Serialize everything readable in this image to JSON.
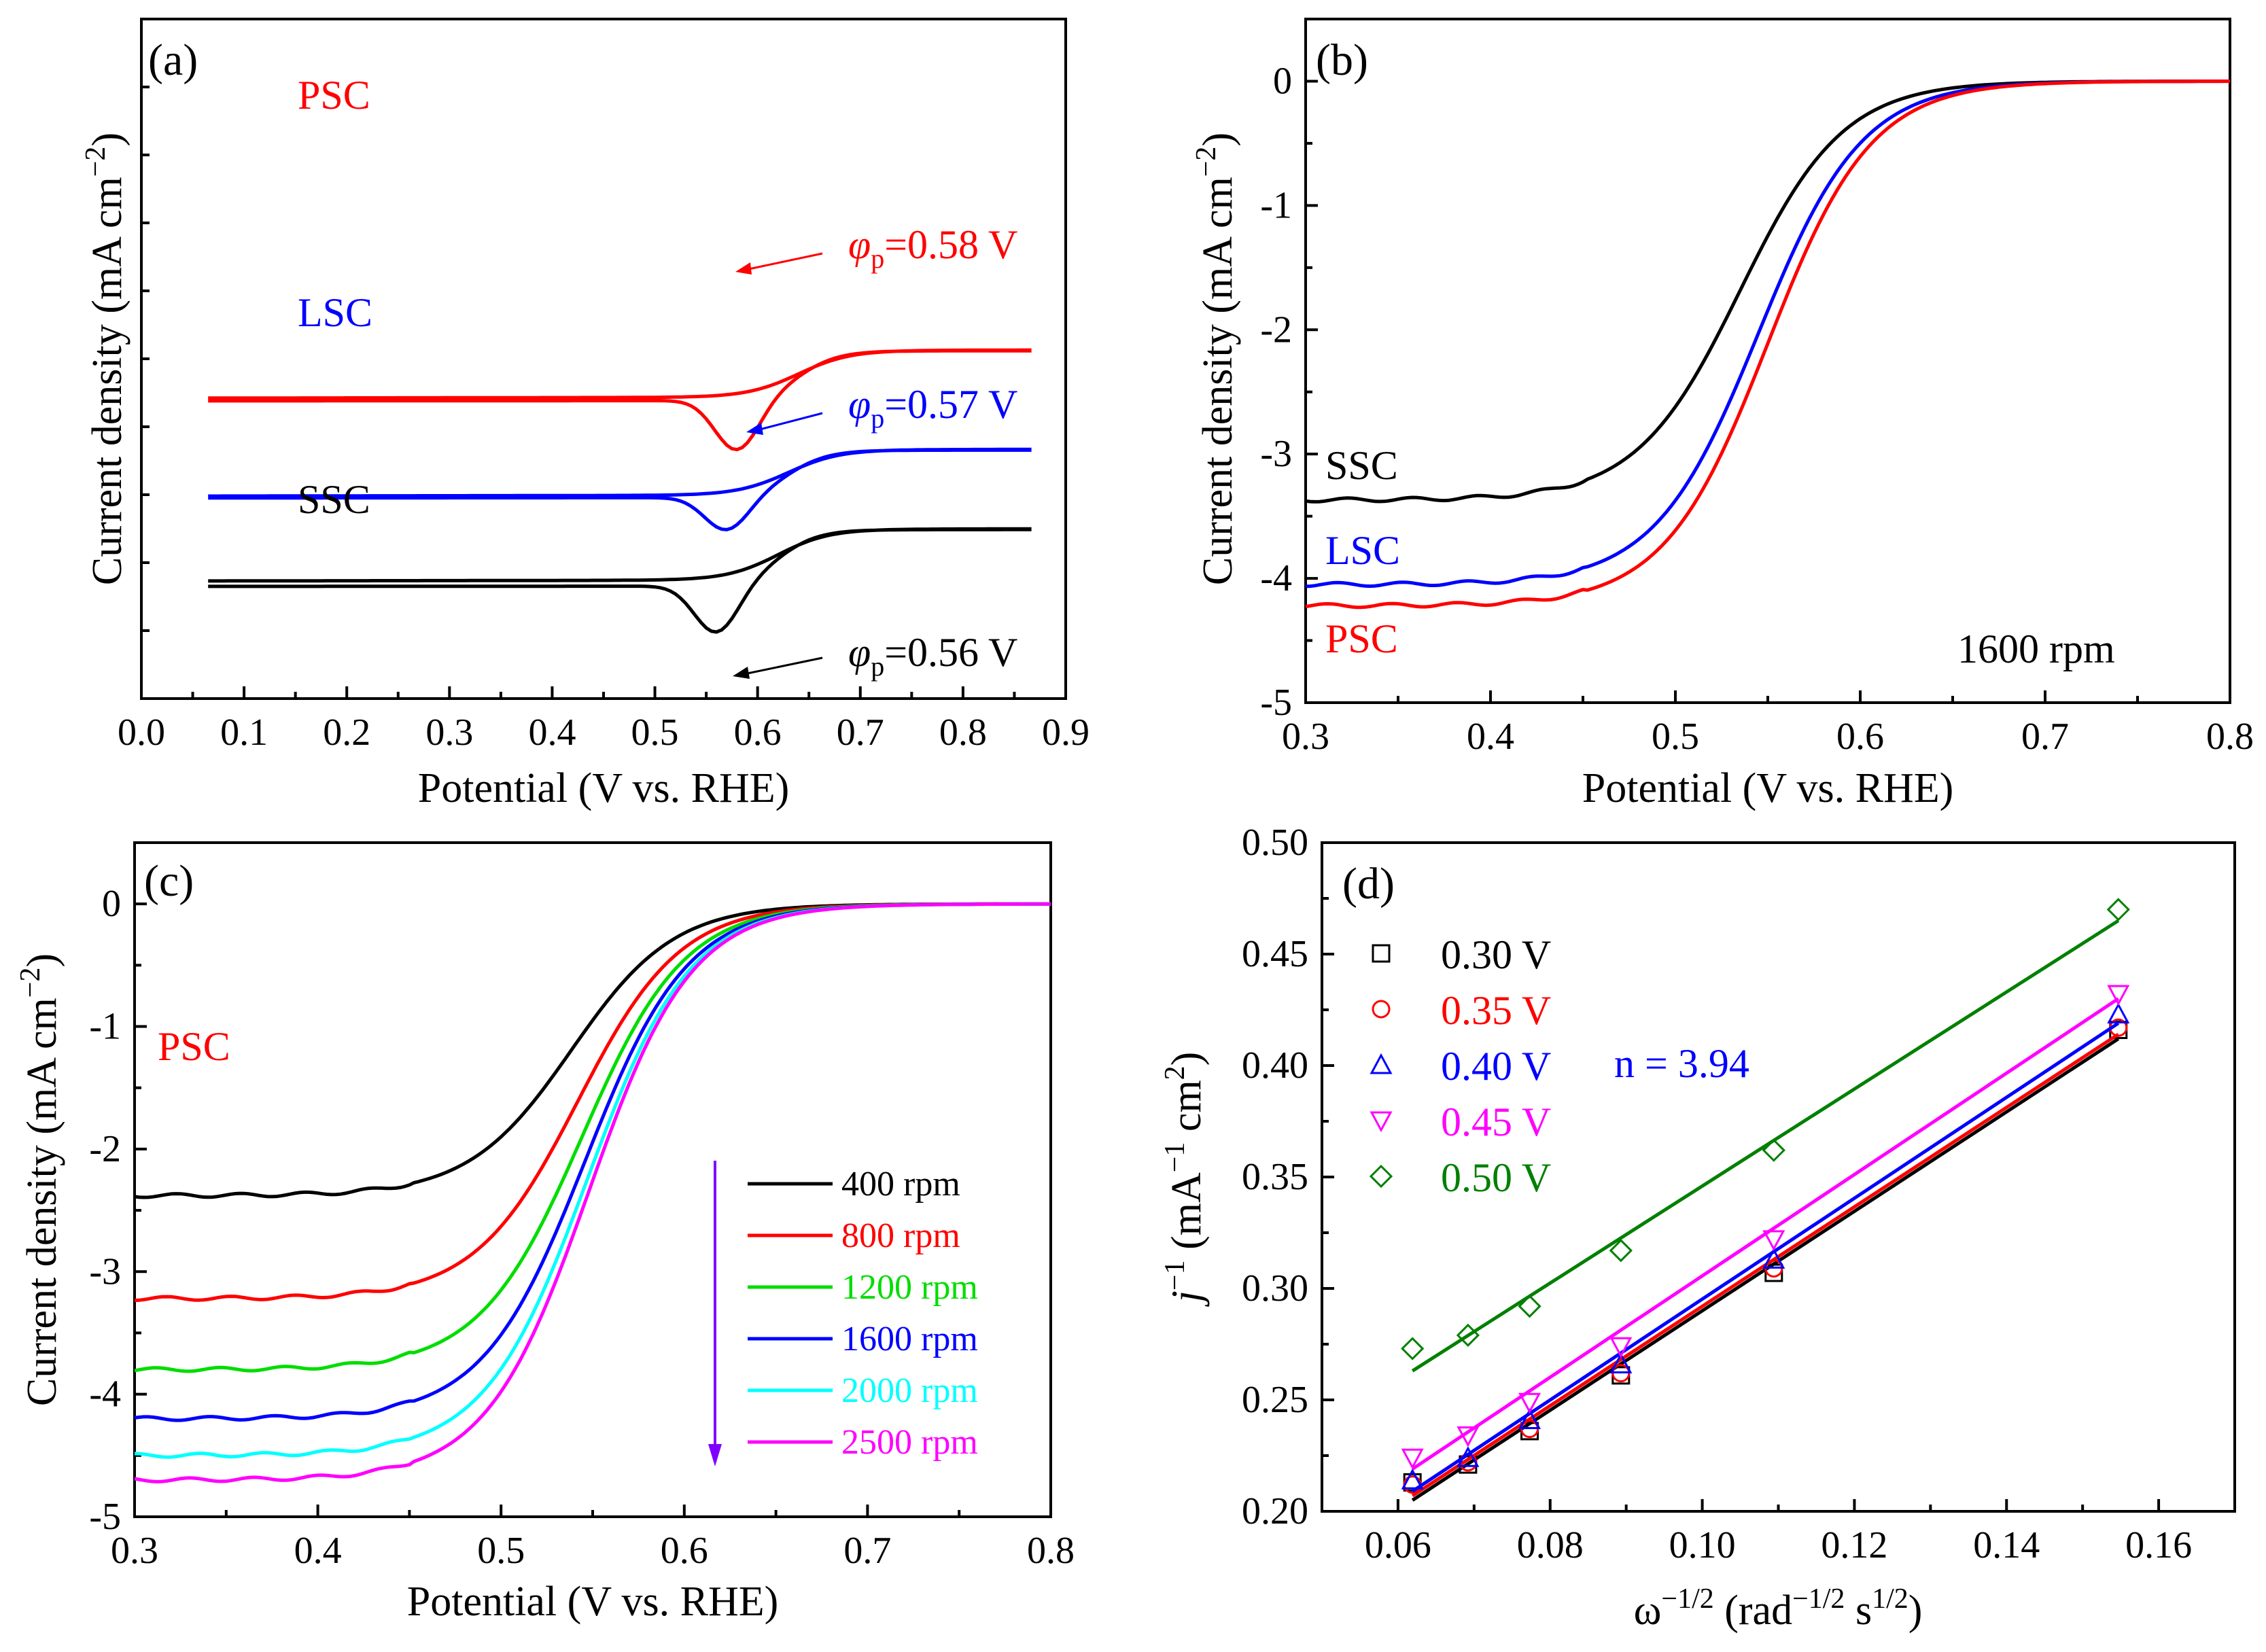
{
  "chart_data": [
    {
      "panel": "(a)",
      "type": "line",
      "subtype": "cyclic-voltammogram",
      "xlabel": "Potential  (V vs. RHE)",
      "ylabel": "Current density (mA cm",
      "ylabel_sup": "−2",
      "ylabel_close": ")",
      "xlim": [
        0.0,
        0.9
      ],
      "xticks": [
        "0.0",
        "0.1",
        "0.2",
        "0.3",
        "0.4",
        "0.5",
        "0.6",
        "0.7",
        "0.8",
        "0.9"
      ],
      "yticks_shown": false,
      "series": [
        {
          "name": "PSC",
          "color": "#ff0000",
          "upper_baseline": 0.48,
          "lower_baseline": 0.0,
          "peak_x": 0.58,
          "peak_depth": 1.8,
          "offset": 9.0
        },
        {
          "name": "LSC",
          "color": "#0000ff",
          "upper_baseline": 0.32,
          "lower_baseline": 0.0,
          "peak_x": 0.57,
          "peak_depth": 1.2,
          "offset": 5.6
        },
        {
          "name": "SSC",
          "color": "#000000",
          "upper_baseline": 0.95,
          "lower_baseline": 0.0,
          "peak_x": 0.56,
          "peak_depth": 1.7,
          "offset": 2.5
        }
      ],
      "annotations": [
        {
          "symbol": "φ",
          "sub": "p",
          "text": "=0.58 V",
          "color": "#ff0000"
        },
        {
          "symbol": "φ",
          "sub": "p",
          "text": "=0.57 V",
          "color": "#0000ff"
        },
        {
          "symbol": "φ",
          "sub": "p",
          "text": "=0.56 V",
          "color": "#000000"
        }
      ],
      "sample_labels": [
        "PSC",
        "LSC",
        "SSC"
      ]
    },
    {
      "panel": "(b)",
      "type": "line",
      "xlabel": "Potential  (V vs. RHE)",
      "ylabel": "Current density (mA cm",
      "ylabel_sup": "−2",
      "ylabel_close": ")",
      "xlim": [
        0.3,
        0.8
      ],
      "ylim": [
        -5,
        0.5
      ],
      "xticks": [
        "0.3",
        "0.4",
        "0.5",
        "0.6",
        "0.7",
        "0.8"
      ],
      "yticks": [
        "0",
        "-1",
        "-2",
        "-3",
        "-4",
        "-5"
      ],
      "note": "1600 rpm",
      "series": [
        {
          "name": "SSC",
          "color": "#000000",
          "limiting_current": -3.37,
          "half_wave_potential": 0.535
        },
        {
          "name": "LSC",
          "color": "#0000ff",
          "limiting_current": -4.05,
          "half_wave_potential": 0.545
        },
        {
          "name": "PSC",
          "color": "#ff0000",
          "limiting_current": -4.22,
          "half_wave_potential": 0.55
        }
      ]
    },
    {
      "panel": "(c)",
      "type": "line",
      "xlabel": "Potential  (V vs. RHE)",
      "ylabel": "Current density (mA cm",
      "ylabel_sup": "−2",
      "ylabel_close": ")",
      "xlim": [
        0.3,
        0.8
      ],
      "ylim": [
        -5,
        0.5
      ],
      "xticks": [
        "0.3",
        "0.4",
        "0.5",
        "0.6",
        "0.7",
        "0.8"
      ],
      "yticks": [
        "0",
        "-1",
        "-2",
        "-3",
        "-4",
        "-5"
      ],
      "label": "PSC",
      "series": [
        {
          "name": "400 rpm",
          "color": "#000000",
          "limiting_current": -2.38
        },
        {
          "name": "800 rpm",
          "color": "#ff0000",
          "limiting_current": -3.22
        },
        {
          "name": "1200 rpm",
          "color": "#00dd00",
          "limiting_current": -3.8
        },
        {
          "name": "1600 rpm",
          "color": "#0000ff",
          "limiting_current": -4.2
        },
        {
          "name": "2000 rpm",
          "color": "#00ffff",
          "limiting_current": -4.5
        },
        {
          "name": "2500 rpm",
          "color": "#ff00ff",
          "limiting_current": -4.7
        }
      ]
    },
    {
      "panel": "(d)",
      "type": "scatter",
      "xlabel": "ω",
      "xlabel_sup": "−1/2",
      "xlabel_rest": " (rad",
      "xlabel_sup2": "−1/2",
      "xlabel_rest2": " s",
      "xlabel_sup3": "1/2",
      "xlabel_close": ")",
      "ylabel": "j",
      "ylabel_sup": "−1",
      "ylabel_rest": " (mA",
      "ylabel_sup2": "−1",
      "ylabel_rest2": " cm",
      "ylabel_sup3": "2",
      "ylabel_close": ")",
      "xlim": [
        0.05,
        0.17
      ],
      "ylim": [
        0.2,
        0.5
      ],
      "xticks": [
        "0.06",
        "0.08",
        "0.10",
        "0.12",
        "0.14",
        "0.16"
      ],
      "yticks": [
        "0.20",
        "0.25",
        "0.30",
        "0.35",
        "0.40",
        "0.45",
        "0.50"
      ],
      "x": [
        0.0619,
        0.0692,
        0.0773,
        0.0893,
        0.1094,
        0.1547
      ],
      "n_text": "n = 3.94",
      "series": [
        {
          "name": "0.30 V",
          "color": "#000000",
          "marker": "square",
          "values": [
            0.213,
            0.221,
            0.236,
            0.261,
            0.307,
            0.416
          ],
          "fit": [
            0.205,
            0.412
          ]
        },
        {
          "name": "0.35 V",
          "color": "#ff0000",
          "marker": "circle",
          "values": [
            0.212,
            0.222,
            0.237,
            0.262,
            0.309,
            0.417
          ],
          "fit": [
            0.207,
            0.414
          ]
        },
        {
          "name": "0.40 V",
          "color": "#0000ff",
          "marker": "triangle-up",
          "values": [
            0.214,
            0.224,
            0.241,
            0.266,
            0.313,
            0.423
          ],
          "fit": [
            0.209,
            0.419
          ]
        },
        {
          "name": "0.45 V",
          "color": "#ff00ff",
          "marker": "triangle-down",
          "values": [
            0.224,
            0.234,
            0.249,
            0.274,
            0.322,
            0.432
          ],
          "fit": [
            0.219,
            0.43
          ]
        },
        {
          "name": "0.50 V",
          "color": "#008000",
          "marker": "diamond",
          "values": [
            0.273,
            0.279,
            0.292,
            0.317,
            0.362,
            0.47
          ],
          "fit": [
            0.263,
            0.465
          ]
        }
      ]
    }
  ]
}
